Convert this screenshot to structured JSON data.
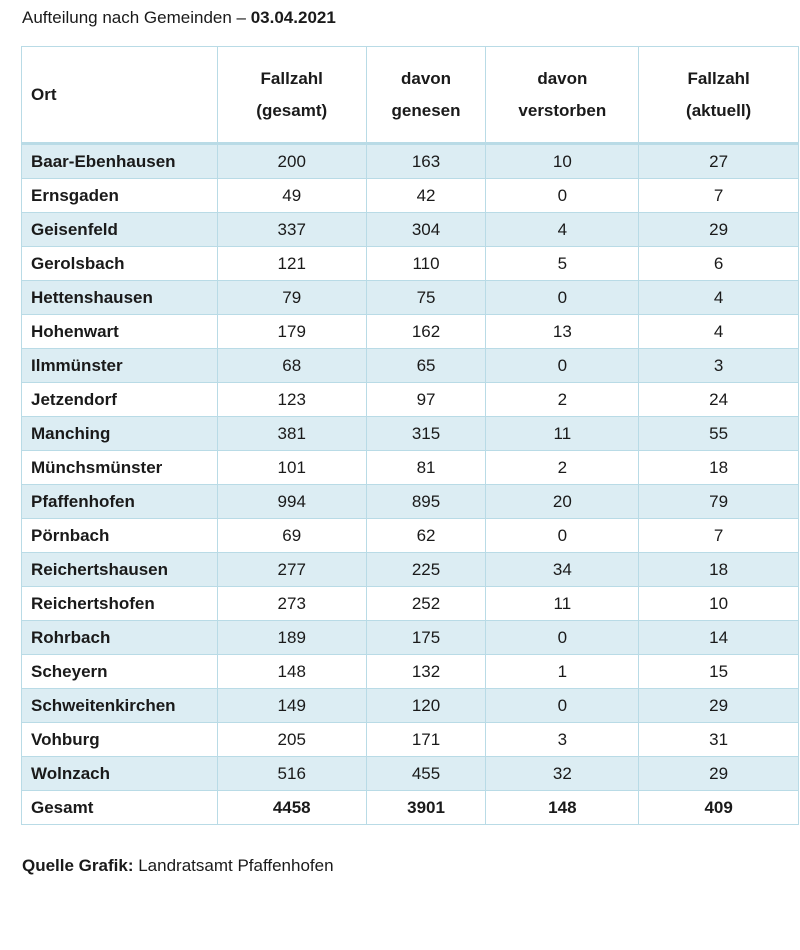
{
  "heading": {
    "text": "Aufteilung nach Gemeinden – ",
    "date": "03.04.2021"
  },
  "columns": [
    {
      "line1": "Ort",
      "line2": ""
    },
    {
      "line1": "Fallzahl",
      "line2": "(gesamt)"
    },
    {
      "line1": "davon",
      "line2": "genesen"
    },
    {
      "line1": "davon",
      "line2": "verstorben"
    },
    {
      "line1": "Fallzahl",
      "line2": "(aktuell)"
    }
  ],
  "rows": [
    [
      "Baar-Ebenhausen",
      "200",
      "163",
      "10",
      "27"
    ],
    [
      "Ernsgaden",
      "49",
      "42",
      "0",
      "7"
    ],
    [
      "Geisenfeld",
      "337",
      "304",
      "4",
      "29"
    ],
    [
      "Gerolsbach",
      "121",
      "110",
      "5",
      "6"
    ],
    [
      "Hettenshausen",
      "79",
      "75",
      "0",
      "4"
    ],
    [
      "Hohenwart",
      "179",
      "162",
      "13",
      "4"
    ],
    [
      "Ilmmünster",
      "68",
      "65",
      "0",
      "3"
    ],
    [
      "Jetzendorf",
      "123",
      "97",
      "2",
      "24"
    ],
    [
      "Manching",
      "381",
      "315",
      "11",
      "55"
    ],
    [
      "Münchsmünster",
      "101",
      "81",
      "2",
      "18"
    ],
    [
      "Pfaffenhofen",
      "994",
      "895",
      "20",
      "79"
    ],
    [
      "Pörnbach",
      "69",
      "62",
      "0",
      "7"
    ],
    [
      "Reichertshausen",
      "277",
      "225",
      "34",
      "18"
    ],
    [
      "Reichertshofen",
      "273",
      "252",
      "11",
      "10"
    ],
    [
      "Rohrbach",
      "189",
      "175",
      "0",
      "14"
    ],
    [
      "Scheyern",
      "148",
      "132",
      "1",
      "15"
    ],
    [
      "Schweitenkirchen",
      "149",
      "120",
      "0",
      "29"
    ],
    [
      "Vohburg",
      "205",
      "171",
      "3",
      "31"
    ],
    [
      "Wolnzach",
      "516",
      "455",
      "32",
      "29"
    ]
  ],
  "total": [
    "Gesamt",
    "4458",
    "3901",
    "148",
    "409"
  ],
  "source": {
    "label": "Quelle Grafik:",
    "text": "Landratsamt Pfaffenhofen"
  },
  "colors": {
    "stripe": "#dcedf3",
    "border": "#b9dbe6"
  }
}
